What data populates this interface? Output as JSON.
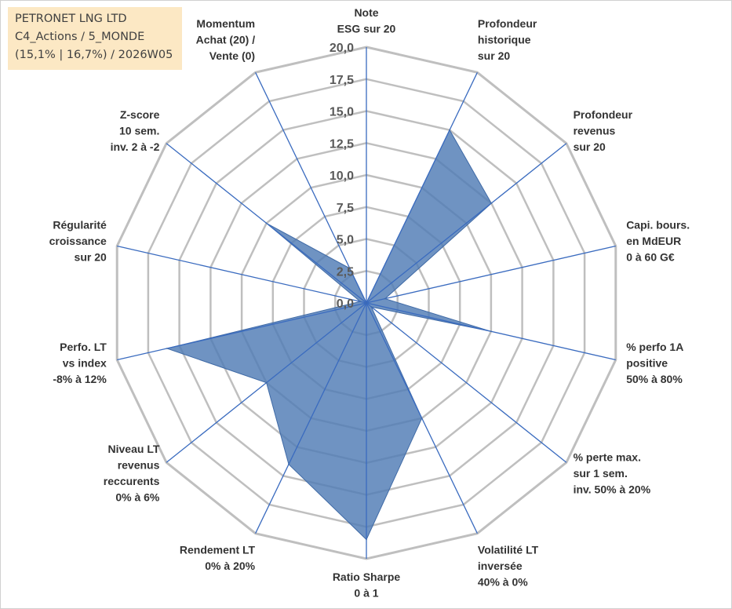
{
  "header": {
    "line1": "PETRONET LNG LTD",
    "line2": "C4_Actions / 5_MONDE",
    "line3": "(15,1% | 16,7%) / 2026W05"
  },
  "colors": {
    "fill": "#4f7bb5",
    "axis": "#3a6bbf",
    "grid": "#bfbfbf",
    "header_bg": "#fce8c4"
  },
  "chart_data": {
    "type": "radar",
    "r_range": [
      0,
      20
    ],
    "ticks": [
      "0,0",
      "2,5",
      "5,0",
      "7,5",
      "10,0",
      "12,5",
      "15,0",
      "17,5",
      "20,0"
    ],
    "axes": [
      {
        "label": [
          "Note",
          "ESG sur 20"
        ],
        "value": 0
      },
      {
        "label": [
          "Profondeur",
          "historique",
          "sur 20"
        ],
        "value": 15
      },
      {
        "label": [
          "Profondeur",
          "revenus",
          "sur 20"
        ],
        "value": 12.5
      },
      {
        "label": [
          "Capi. bours.",
          "en MdEUR",
          "0 à 60 G€"
        ],
        "value": 1.5
      },
      {
        "label": [
          "% perfo 1A",
          "positive",
          "50% à 80%"
        ],
        "value": 10
      },
      {
        "label": [
          "% perte max.",
          "sur 1 sem.",
          "inv. 50% à 20%"
        ],
        "value": 0.5
      },
      {
        "label": [
          "Volatilité LT",
          "inversée",
          "40% à 0%"
        ],
        "value": 10
      },
      {
        "label": [
          "Ratio Sharpe",
          "0 à 1"
        ],
        "value": 18.5
      },
      {
        "label": [
          "Rendement LT",
          "0% à 20%"
        ],
        "value": 14
      },
      {
        "label": [
          "Niveau LT",
          "revenus",
          "reccurents",
          "0% à 6%"
        ],
        "value": 10
      },
      {
        "label": [
          "Perfo. LT",
          "vs index",
          "-8% à 12%"
        ],
        "value": 16
      },
      {
        "label": [
          "Régularité",
          "croissance",
          "sur 20"
        ],
        "value": 0.5
      },
      {
        "label": [
          "Z-score",
          "10 sem.",
          "inv. 2 à -2"
        ],
        "value": 10
      },
      {
        "label": [
          "Momentum",
          "Achat (20) /",
          "Vente (0)"
        ],
        "value": 3
      }
    ]
  }
}
